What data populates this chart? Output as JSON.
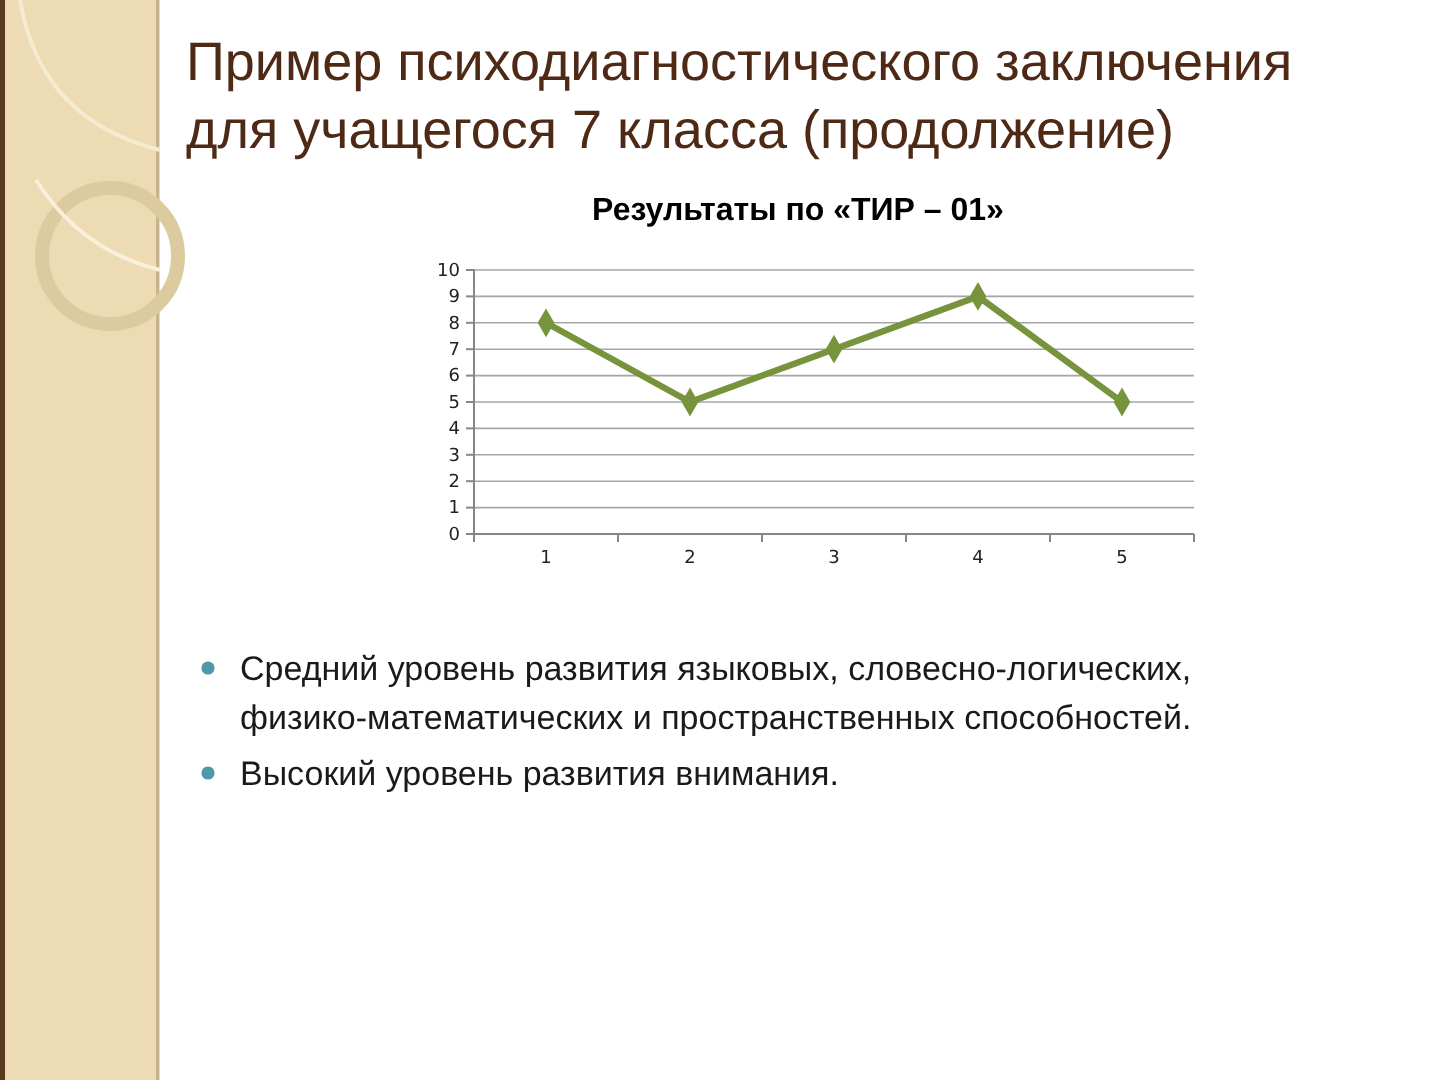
{
  "chart_data": {
    "type": "line",
    "title": "Пример психодиагностического заключения для учащегося 7 класса (продолжение)",
    "subtitle": "Результаты по «ТИР – 01»",
    "categories": [
      "1",
      "2",
      "3",
      "4",
      "5"
    ],
    "series": [
      {
        "color": "#77933c",
        "values": [
          8,
          5,
          7,
          9,
          5
        ]
      }
    ],
    "ylim": [
      0,
      10
    ],
    "yticks": [
      0,
      1,
      2,
      3,
      4,
      5,
      6,
      7,
      8,
      9,
      10
    ],
    "grid": "y",
    "marker": "diamond",
    "line_style": "solid",
    "annotations": [
      "Средний уровень развития языковых, словесно-логических, физико-математических и пространственных способностей.",
      "Высокий уровень развития внимания."
    ]
  }
}
